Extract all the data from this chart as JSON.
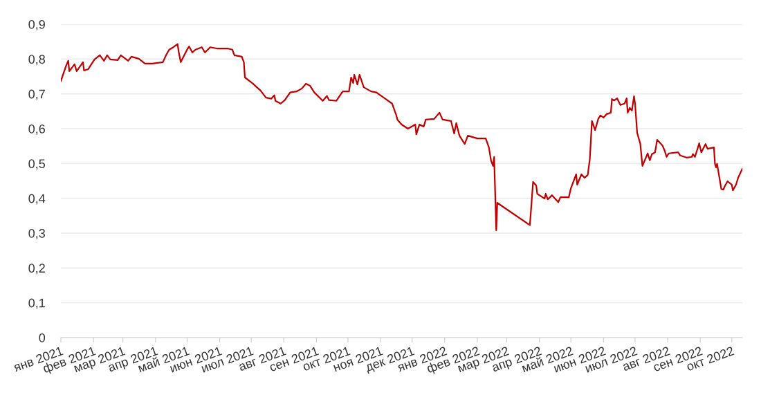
{
  "chart_data": {
    "type": "line",
    "grid": "y",
    "marker": "none",
    "line_style": "solid",
    "xlim": [
      "2021-01-01",
      "2022-10-11"
    ],
    "xticks": [
      {
        "value": "2021-01-01",
        "label": "янв 2021"
      },
      {
        "value": "2021-02-01",
        "label": "фев 2021"
      },
      {
        "value": "2021-03-01",
        "label": "мар 2021"
      },
      {
        "value": "2021-04-01",
        "label": "апр 2021"
      },
      {
        "value": "2021-05-01",
        "label": "май 2021"
      },
      {
        "value": "2021-06-01",
        "label": "июн 2021"
      },
      {
        "value": "2021-07-01",
        "label": "июл 2021"
      },
      {
        "value": "2021-08-01",
        "label": "авг 2021"
      },
      {
        "value": "2021-09-01",
        "label": "сен 2021"
      },
      {
        "value": "2021-10-01",
        "label": "окт 2021"
      },
      {
        "value": "2021-11-01",
        "label": "ноя 2021"
      },
      {
        "value": "2021-12-01",
        "label": "дек 2021"
      },
      {
        "value": "2022-01-01",
        "label": "янв 2022"
      },
      {
        "value": "2022-02-01",
        "label": "фев 2022"
      },
      {
        "value": "2022-03-01",
        "label": "мар 2022"
      },
      {
        "value": "2022-04-01",
        "label": "апр 2022"
      },
      {
        "value": "2022-05-01",
        "label": "май 2022"
      },
      {
        "value": "2022-06-01",
        "label": "июн 2022"
      },
      {
        "value": "2022-07-01",
        "label": "июл 2022"
      },
      {
        "value": "2022-08-01",
        "label": "авг 2022"
      },
      {
        "value": "2022-09-01",
        "label": "сен 2022"
      },
      {
        "value": "2022-10-01",
        "label": "окт 2022"
      }
    ],
    "ylim": [
      0,
      0.9
    ],
    "yticks": [
      0,
      {
        "value": 0.1,
        "label": "0,1"
      },
      {
        "value": 0.2,
        "label": "0,2"
      },
      {
        "value": 0.3,
        "label": "0,3"
      },
      {
        "value": 0.4,
        "label": "0,4"
      },
      {
        "value": 0.5,
        "label": "0,5"
      },
      {
        "value": 0.6,
        "label": "0,6"
      },
      {
        "value": 0.7,
        "label": "0,7"
      },
      {
        "value": 0.8,
        "label": "0,8"
      },
      {
        "value": 0.9,
        "label": "0,9"
      }
    ],
    "x": [
      "2021-01-01",
      "2021-01-06",
      "2021-01-08",
      "2021-01-09",
      "2021-01-14",
      "2021-01-16",
      "2021-01-22",
      "2021-01-23",
      "2021-01-27",
      "2021-02-02",
      "2021-02-07",
      "2021-02-11",
      "2021-02-14",
      "2021-02-17",
      "2021-02-24",
      "2021-02-27",
      "2021-03-06",
      "2021-03-09",
      "2021-03-16",
      "2021-03-22",
      "2021-03-29",
      "2021-04-08",
      "2021-04-11",
      "2021-04-14",
      "2021-04-18",
      "2021-04-22",
      "2021-04-23",
      "2021-04-25",
      "2021-05-01",
      "2021-05-03",
      "2021-05-06",
      "2021-05-09",
      "2021-05-15",
      "2021-05-18",
      "2021-05-23",
      "2021-05-30",
      "2021-06-09",
      "2021-06-13",
      "2021-06-15",
      "2021-06-22",
      "2021-06-24",
      "2021-06-25",
      "2021-07-02",
      "2021-07-10",
      "2021-07-15",
      "2021-07-20",
      "2021-07-23",
      "2021-07-24",
      "2021-07-29",
      "2021-08-02",
      "2021-08-07",
      "2021-08-13",
      "2021-08-18",
      "2021-08-22",
      "2021-08-26",
      "2021-08-30",
      "2021-09-07",
      "2021-09-11",
      "2021-09-13",
      "2021-09-20",
      "2021-09-26",
      "2021-10-02",
      "2021-10-04",
      "2021-10-06",
      "2021-10-07",
      "2021-10-10",
      "2021-10-12",
      "2021-10-16",
      "2021-10-23",
      "2021-10-28",
      "2021-11-04",
      "2021-11-12",
      "2021-11-16",
      "2021-11-17",
      "2021-11-21",
      "2021-11-27",
      "2021-12-04",
      "2021-12-05",
      "2021-12-08",
      "2021-12-12",
      "2021-12-14",
      "2021-12-22",
      "2021-12-27",
      "2021-12-30",
      "2022-01-07",
      "2022-01-10",
      "2022-01-12",
      "2022-01-15",
      "2022-01-20",
      "2022-01-23",
      "2022-02-01",
      "2022-02-09",
      "2022-02-12",
      "2022-02-14",
      "2022-02-16",
      "2022-02-17",
      "2022-02-19",
      "2022-02-20",
      "2022-03-23",
      "2022-03-26",
      "2022-03-29",
      "2022-03-30",
      "2022-04-06",
      "2022-04-07",
      "2022-04-09",
      "2022-04-13",
      "2022-04-19",
      "2022-04-21",
      "2022-04-29",
      "2022-05-01",
      "2022-05-06",
      "2022-05-07",
      "2022-05-11",
      "2022-05-14",
      "2022-05-17",
      "2022-05-19",
      "2022-05-21",
      "2022-05-24",
      "2022-05-27",
      "2022-05-29",
      "2022-06-01",
      "2022-06-04",
      "2022-06-08",
      "2022-06-09",
      "2022-06-11",
      "2022-06-14",
      "2022-06-17",
      "2022-06-21",
      "2022-06-23",
      "2022-06-24",
      "2022-06-26",
      "2022-06-28",
      "2022-06-30",
      "2022-07-01",
      "2022-07-03",
      "2022-07-06",
      "2022-07-08",
      "2022-07-13",
      "2022-07-15",
      "2022-07-17",
      "2022-07-20",
      "2022-07-22",
      "2022-07-27",
      "2022-07-29",
      "2022-07-31",
      "2022-08-02",
      "2022-08-11",
      "2022-08-13",
      "2022-08-19",
      "2022-08-24",
      "2022-08-25",
      "2022-08-27",
      "2022-08-31",
      "2022-09-02",
      "2022-09-06",
      "2022-09-08",
      "2022-09-14",
      "2022-09-15",
      "2022-09-16",
      "2022-09-17",
      "2022-09-21",
      "2022-09-23",
      "2022-09-24",
      "2022-09-27",
      "2022-10-01",
      "2022-10-02",
      "2022-10-05",
      "2022-10-07",
      "2022-10-11"
    ],
    "series": [
      {
        "color": "#c00000",
        "values": [
          0.737,
          0.781,
          0.795,
          0.765,
          0.785,
          0.765,
          0.791,
          0.767,
          0.771,
          0.799,
          0.811,
          0.795,
          0.811,
          0.799,
          0.797,
          0.811,
          0.795,
          0.807,
          0.801,
          0.787,
          0.787,
          0.791,
          0.811,
          0.827,
          0.834,
          0.843,
          0.821,
          0.791,
          0.827,
          0.836,
          0.819,
          0.827,
          0.834,
          0.819,
          0.834,
          0.83,
          0.83,
          0.827,
          0.811,
          0.807,
          0.791,
          0.747,
          0.731,
          0.709,
          0.689,
          0.686,
          0.696,
          0.68,
          0.672,
          0.682,
          0.704,
          0.707,
          0.715,
          0.729,
          0.723,
          0.704,
          0.68,
          0.694,
          0.682,
          0.68,
          0.707,
          0.707,
          0.747,
          0.731,
          0.755,
          0.727,
          0.755,
          0.719,
          0.707,
          0.704,
          0.689,
          0.672,
          0.638,
          0.626,
          0.612,
          0.6,
          0.612,
          0.584,
          0.612,
          0.606,
          0.626,
          0.628,
          0.646,
          0.626,
          0.622,
          0.586,
          0.616,
          0.58,
          0.556,
          0.58,
          0.572,
          0.572,
          0.546,
          0.509,
          0.493,
          0.519,
          0.308,
          0.387,
          0.323,
          0.447,
          0.437,
          0.413,
          0.399,
          0.413,
          0.397,
          0.409,
          0.389,
          0.403,
          0.403,
          0.429,
          0.469,
          0.439,
          0.469,
          0.459,
          0.467,
          0.513,
          0.622,
          0.596,
          0.628,
          0.638,
          0.632,
          0.642,
          0.646,
          0.685,
          0.681,
          0.687,
          0.668,
          0.672,
          0.687,
          0.646,
          0.66,
          0.652,
          0.693,
          0.672,
          0.588,
          0.556,
          0.493,
          0.529,
          0.509,
          0.527,
          0.532,
          0.568,
          0.552,
          0.538,
          0.519,
          0.529,
          0.532,
          0.523,
          0.517,
          0.519,
          0.527,
          0.519,
          0.558,
          0.532,
          0.556,
          0.542,
          0.546,
          0.499,
          0.489,
          0.499,
          0.427,
          0.425,
          0.433,
          0.449,
          0.439,
          0.423,
          0.439,
          0.459,
          0.485
        ]
      }
    ]
  }
}
